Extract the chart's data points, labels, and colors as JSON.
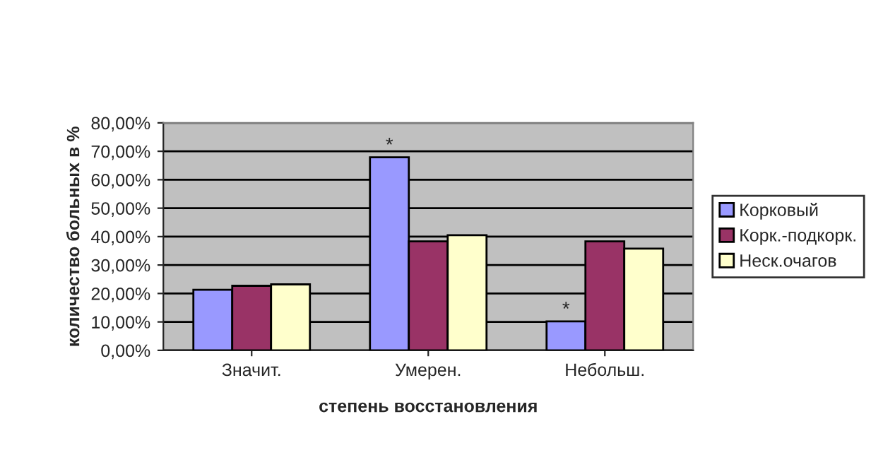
{
  "chart_data": {
    "type": "bar",
    "xlabel": "степень восстановления",
    "ylabel": "количество больных в %",
    "categories": [
      "Значит.",
      "Умерен.",
      "Небольш."
    ],
    "series": [
      {
        "name": "Корковый",
        "color": "#9999ff",
        "values": [
          21.3,
          67.9,
          10.2
        ]
      },
      {
        "name": "Корк.-подкорк.",
        "color": "#993366",
        "values": [
          22.7,
          38.3,
          38.3
        ]
      },
      {
        "name": "Неск.очагов",
        "color": "#ffffcc",
        "values": [
          23.2,
          40.5,
          35.8
        ]
      }
    ],
    "annotations": [
      "*",
      "*"
    ],
    "ylim": [
      0,
      80
    ],
    "yticks": [
      {
        "value": 0,
        "label": "0,00%"
      },
      {
        "value": 10,
        "label": "10,00%"
      },
      {
        "value": 20,
        "label": "20,00%"
      },
      {
        "value": 30,
        "label": "30,00%"
      },
      {
        "value": 40,
        "label": "40,00%"
      },
      {
        "value": 50,
        "label": "50,00%"
      },
      {
        "value": 60,
        "label": "60,00%"
      },
      {
        "value": 70,
        "label": "70,00%"
      },
      {
        "value": 80,
        "label": "80,00%"
      }
    ],
    "grid": "y",
    "legend": "right"
  }
}
